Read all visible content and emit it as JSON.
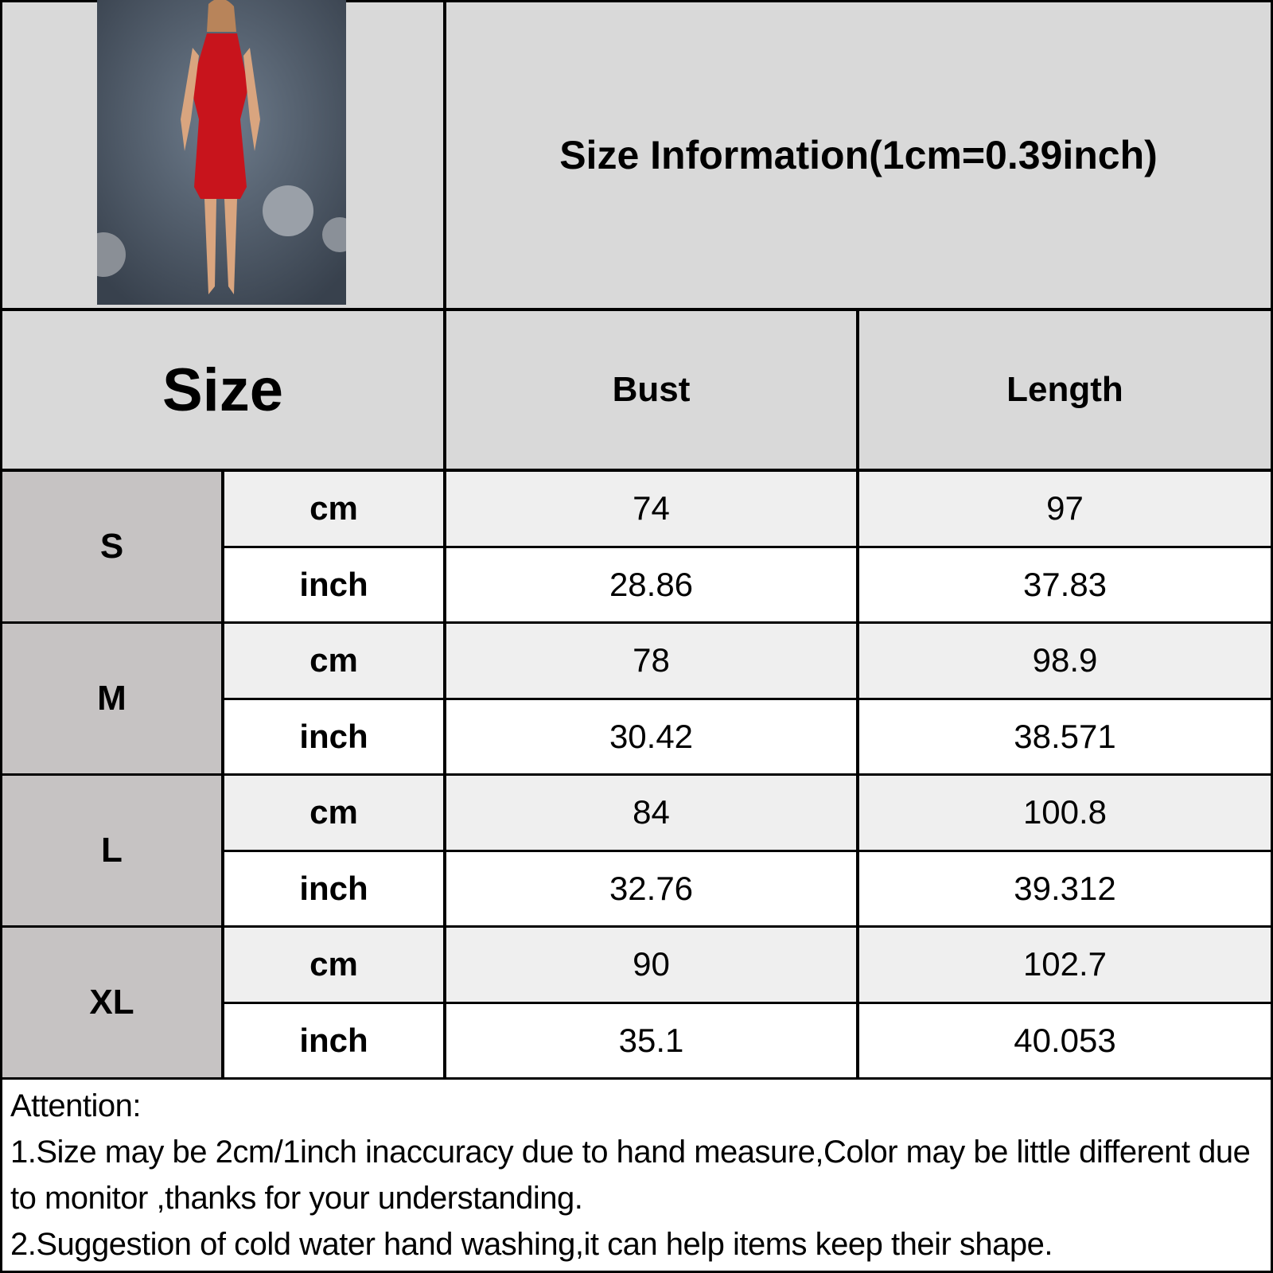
{
  "title": "Size Information(1cm=0.39inch)",
  "headers": {
    "size": "Size",
    "bust": "Bust",
    "length": "Length"
  },
  "colors": {
    "header_bg": "#d9d9d9",
    "size_bg": "#c6c3c3",
    "cm_row_bg": "#efefef",
    "inch_row_bg": "#ffffff",
    "dress": "#c8141c"
  },
  "photo": {
    "subject": "model-in-red-halter-dress"
  },
  "rows": [
    {
      "size": "S",
      "cm_label": "cm",
      "inch_label": "inch",
      "bust_cm": "74",
      "length_cm": "97",
      "bust_inch": "28.86",
      "length_inch": "37.83"
    },
    {
      "size": "M",
      "cm_label": "cm",
      "inch_label": "inch",
      "bust_cm": "78",
      "length_cm": "98.9",
      "bust_inch": "30.42",
      "length_inch": "38.571"
    },
    {
      "size": "L",
      "cm_label": "cm",
      "inch_label": "inch",
      "bust_cm": "84",
      "length_cm": "100.8",
      "bust_inch": "32.76",
      "length_inch": "39.312"
    },
    {
      "size": "XL",
      "cm_label": "cm",
      "inch_label": "inch",
      "bust_cm": "90",
      "length_cm": "102.7",
      "bust_inch": "35.1",
      "length_inch": "40.053"
    }
  ],
  "notes": {
    "heading": "Attention:",
    "lines": [
      "1.Size may be 2cm/1inch inaccuracy due to hand measure,Color may be little different due to monitor ,thanks for your understanding.",
      "2.Suggestion of cold water hand washing,it can help items keep their shape."
    ]
  }
}
